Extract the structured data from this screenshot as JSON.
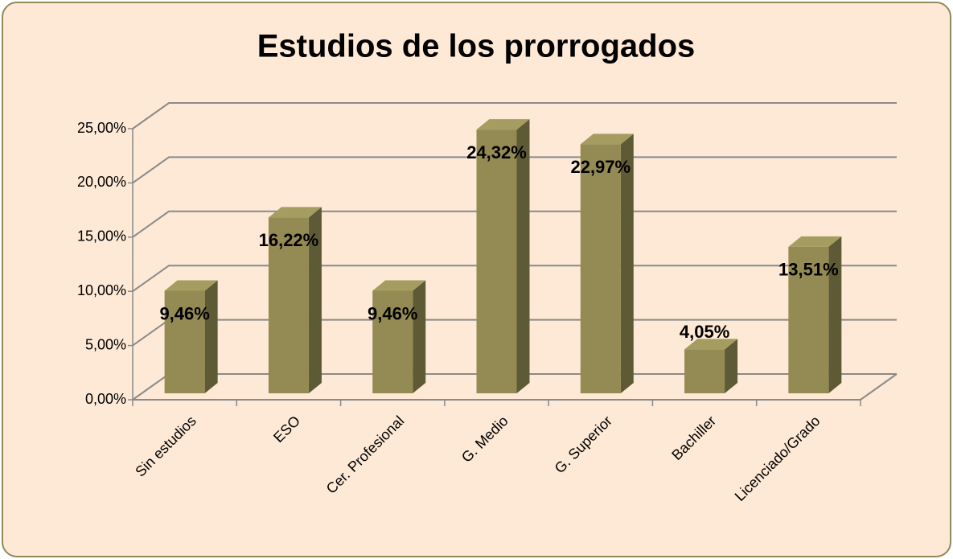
{
  "chart_data": {
    "type": "bar3d",
    "title": "Estudios de los prorrogados",
    "categories": [
      "Sin estudios",
      "ESO",
      "Cer. Profesional",
      "G. Medio",
      "G. Superior",
      "Bachiller",
      "Licenciado/Grado"
    ],
    "values": [
      9.46,
      16.22,
      9.46,
      24.32,
      22.97,
      4.05,
      13.51
    ],
    "value_labels": [
      "9,46%",
      "16,22%",
      "9,46%",
      "24,32%",
      "22,97%",
      "4,05%",
      "13,51%"
    ],
    "color": "#948a54",
    "ylim": [
      0,
      25
    ],
    "yticks": [
      {
        "value": 0,
        "label": "0,00%"
      },
      {
        "value": 5,
        "label": "5,00%"
      },
      {
        "value": 10,
        "label": "10,00%"
      },
      {
        "value": 15,
        "label": "15,00%"
      },
      {
        "value": 20,
        "label": "20,00%"
      },
      {
        "value": 25,
        "label": "25,00%"
      }
    ],
    "grid": true
  }
}
